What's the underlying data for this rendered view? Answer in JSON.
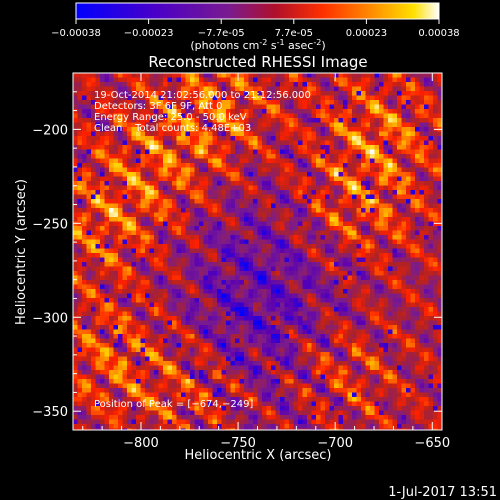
{
  "colorbar": {
    "ticks": [
      "-0.00038",
      "-0.00023",
      "-7.7e-05",
      "7.7e-05",
      "0.00023",
      "0.00038"
    ],
    "unit_parts": [
      "(photons cm",
      "-2",
      " s",
      "-1",
      " asec",
      "-2",
      ")"
    ]
  },
  "chart_data": {
    "type": "heatmap",
    "title": "Reconstructed RHESSI Image",
    "xlabel": "Heliocentric X (arcsec)",
    "ylabel": "Heliocentric Y (arcsec)",
    "xlim": [
      -835,
      -645
    ],
    "ylim": [
      -360,
      -170
    ],
    "x_ticks": [
      -800,
      -750,
      -700,
      -650
    ],
    "y_ticks": [
      -200,
      -250,
      -300,
      -350
    ],
    "x_tick_labels": [
      "−800",
      "−750",
      "−700",
      "−650"
    ],
    "y_tick_labels": [
      "−200",
      "−250",
      "−300",
      "−350"
    ],
    "colorbar_range": [
      -0.00038,
      0.00038
    ],
    "colormap": [
      "#0000ff",
      "#5a00b4",
      "#7b1c8c",
      "#b22222",
      "#ff2000",
      "#ff8c00",
      "#ffd000",
      "#ffffff"
    ],
    "annotations": [
      "19-Oct-2014 21:02:56.000 to 21:12:56.000",
      "Detectors: 3F 6F 9F, Att 0",
      "Energy Range: 25.0 - 50.0 keV",
      "Clean    Total counts: 4.48E+03"
    ],
    "peak_label": "Position of Peak = [−674,−249]",
    "peak": [
      -674,
      -249
    ]
  },
  "timestamp": "1-Jul-2017 13:51"
}
